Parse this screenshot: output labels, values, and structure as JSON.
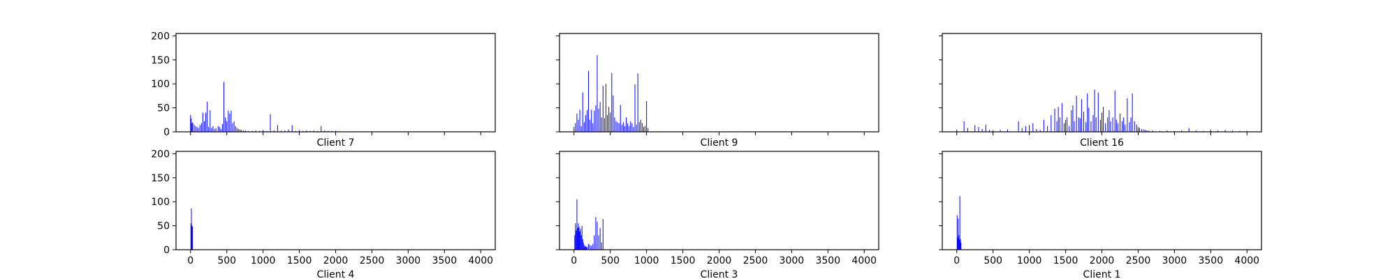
{
  "chart_data": [
    {
      "type": "bar",
      "title": "Client 7",
      "xlim": [
        -200,
        4200
      ],
      "ylim": [
        0,
        205
      ],
      "xticks": [
        0,
        500,
        1000,
        1500,
        2000,
        2500,
        3000,
        3500,
        4000
      ],
      "yticks": [
        0,
        50,
        100,
        150,
        200
      ],
      "show_xticklabels": false,
      "show_yticklabels": true,
      "series": [
        {
          "color": "#0000ff",
          "x": [
            0,
            10,
            20,
            30,
            50,
            70,
            90,
            110,
            130,
            150,
            170,
            190,
            210,
            230,
            250,
            270,
            290,
            310,
            330,
            350,
            380,
            400,
            420,
            440,
            460,
            480,
            500,
            520,
            540,
            560,
            580,
            600,
            620,
            640,
            660,
            680,
            700,
            730,
            760,
            800,
            850,
            900,
            950,
            1000,
            1050,
            1100,
            1150,
            1200,
            1250,
            1300,
            1350,
            1400,
            1450,
            1500,
            1550,
            1600,
            1650,
            1700,
            1750,
            1800,
            1850,
            1900,
            1950,
            2000,
            2050
          ],
          "values": [
            35,
            28,
            18,
            20,
            15,
            12,
            10,
            8,
            14,
            18,
            40,
            22,
            40,
            63,
            10,
            45,
            8,
            12,
            6,
            8,
            12,
            10,
            6,
            16,
            104,
            30,
            22,
            44,
            38,
            44,
            18,
            22,
            12,
            8,
            6,
            5,
            4,
            3,
            3,
            2,
            2,
            3,
            2,
            4,
            2,
            37,
            3,
            14,
            2,
            3,
            5,
            14,
            2,
            3,
            2,
            3,
            2,
            3,
            2,
            12,
            3,
            2,
            2,
            2,
            1
          ]
        }
      ]
    },
    {
      "type": "bar",
      "title": "Client 9",
      "xlim": [
        -200,
        4200
      ],
      "ylim": [
        0,
        205
      ],
      "xticks": [
        0,
        500,
        1000,
        1500,
        2000,
        2500,
        3000,
        3500,
        4000
      ],
      "yticks": [
        0,
        50,
        100,
        150,
        200
      ],
      "show_xticklabels": false,
      "show_yticklabels": false,
      "series": [
        {
          "color": "#0000ff",
          "x": [
            0,
            20,
            40,
            60,
            80,
            100,
            120,
            140,
            160,
            180,
            200,
            220,
            240,
            260,
            280,
            300,
            320,
            340,
            360,
            380,
            400,
            420,
            440,
            460,
            480,
            500,
            520,
            540,
            560,
            580,
            600,
            620,
            640,
            660,
            680,
            700,
            720,
            740,
            760,
            780,
            800,
            820,
            840,
            860,
            880,
            900,
            920,
            940,
            960,
            980,
            1000,
            1020
          ],
          "values": [
            10,
            18,
            38,
            25,
            46,
            12,
            82,
            20,
            35,
            45,
            127,
            25,
            46,
            18,
            44,
            55,
            160,
            48,
            62,
            30,
            96,
            28,
            100,
            35,
            52,
            40,
            123,
            76,
            30,
            22,
            20,
            18,
            56,
            15,
            20,
            12,
            30,
            18,
            12,
            22,
            18,
            10,
            99,
            15,
            122,
            20,
            25,
            18,
            10,
            12,
            64,
            8
          ]
        }
      ]
    },
    {
      "type": "bar",
      "title": "Client 16",
      "xlim": [
        -200,
        4200
      ],
      "ylim": [
        0,
        205
      ],
      "xticks": [
        0,
        500,
        1000,
        1500,
        2000,
        2500,
        3000,
        3500,
        4000
      ],
      "yticks": [
        0,
        50,
        100,
        150,
        200
      ],
      "show_xticklabels": false,
      "show_yticklabels": false,
      "series": [
        {
          "color": "#0000ff",
          "x": [
            0,
            100,
            150,
            250,
            300,
            350,
            400,
            450,
            500,
            600,
            700,
            850,
            900,
            950,
            1000,
            1050,
            1100,
            1150,
            1200,
            1250,
            1300,
            1350,
            1380,
            1400,
            1420,
            1450,
            1480,
            1500,
            1520,
            1550,
            1580,
            1600,
            1620,
            1650,
            1680,
            1700,
            1720,
            1750,
            1780,
            1800,
            1820,
            1850,
            1880,
            1900,
            1920,
            1950,
            1980,
            2000,
            2020,
            2050,
            2080,
            2100,
            2120,
            2150,
            2180,
            2200,
            2220,
            2250,
            2280,
            2300,
            2320,
            2350,
            2380,
            2400,
            2420,
            2450,
            2480,
            2500,
            2520,
            2550,
            2580,
            2600,
            2620,
            2650,
            2700,
            2800,
            2900,
            3000,
            3100,
            3200,
            3300,
            3400,
            3500,
            3600,
            3700,
            3800,
            3900,
            4000
          ],
          "values": [
            5,
            22,
            8,
            14,
            10,
            6,
            15,
            4,
            3,
            4,
            5,
            22,
            8,
            12,
            14,
            18,
            6,
            4,
            25,
            12,
            35,
            48,
            22,
            52,
            30,
            60,
            18,
            25,
            30,
            12,
            45,
            55,
            22,
            75,
            30,
            28,
            68,
            42,
            20,
            80,
            50,
            22,
            35,
            88,
            30,
            82,
            25,
            40,
            52,
            18,
            30,
            45,
            22,
            30,
            86,
            25,
            18,
            38,
            22,
            30,
            15,
            70,
            20,
            30,
            80,
            22,
            15,
            10,
            8,
            6,
            5,
            4,
            3,
            3,
            3,
            2,
            3,
            2,
            3,
            8,
            3,
            2,
            5,
            3,
            4,
            3,
            2,
            2
          ]
        }
      ]
    },
    {
      "type": "bar",
      "title": "Client 4",
      "xlim": [
        -200,
        4200
      ],
      "ylim": [
        0,
        205
      ],
      "xticks": [
        0,
        500,
        1000,
        1500,
        2000,
        2500,
        3000,
        3500,
        4000
      ],
      "yticks": [
        0,
        50,
        100,
        150,
        200
      ],
      "show_xticklabels": true,
      "show_yticklabels": true,
      "series": [
        {
          "color": "#0000ff",
          "x": [
            5,
            12,
            20,
            28
          ],
          "values": [
            55,
            86,
            50,
            48
          ]
        }
      ]
    },
    {
      "type": "bar",
      "title": "Client 3",
      "xlim": [
        -200,
        4200
      ],
      "ylim": [
        0,
        205
      ],
      "xticks": [
        0,
        500,
        1000,
        1500,
        2000,
        2500,
        3000,
        3500,
        4000
      ],
      "yticks": [
        0,
        50,
        100,
        150,
        200
      ],
      "show_xticklabels": true,
      "show_yticklabels": false,
      "series": [
        {
          "color": "#0000ff",
          "x": [
            10,
            20,
            30,
            40,
            50,
            60,
            70,
            80,
            90,
            100,
            110,
            120,
            130,
            140,
            150,
            160,
            170,
            180,
            200,
            220,
            240,
            260,
            280,
            300,
            320,
            340,
            360,
            380,
            400
          ],
          "values": [
            30,
            55,
            40,
            105,
            45,
            55,
            48,
            38,
            44,
            30,
            50,
            22,
            15,
            10,
            6,
            8,
            5,
            6,
            12,
            10,
            8,
            12,
            30,
            68,
            58,
            30,
            45,
            15,
            64
          ]
        }
      ]
    },
    {
      "type": "bar",
      "title": "Client 1",
      "xlim": [
        -200,
        4200
      ],
      "ylim": [
        0,
        205
      ],
      "xticks": [
        0,
        500,
        1000,
        1500,
        2000,
        2500,
        3000,
        3500,
        4000
      ],
      "yticks": [
        0,
        50,
        100,
        150,
        200
      ],
      "show_xticklabels": true,
      "show_yticklabels": false,
      "series": [
        {
          "color": "#0000ff",
          "x": [
            5,
            12,
            20,
            28,
            35,
            42,
            50,
            58
          ],
          "values": [
            72,
            25,
            65,
            30,
            20,
            112,
            22,
            15
          ]
        }
      ]
    }
  ]
}
